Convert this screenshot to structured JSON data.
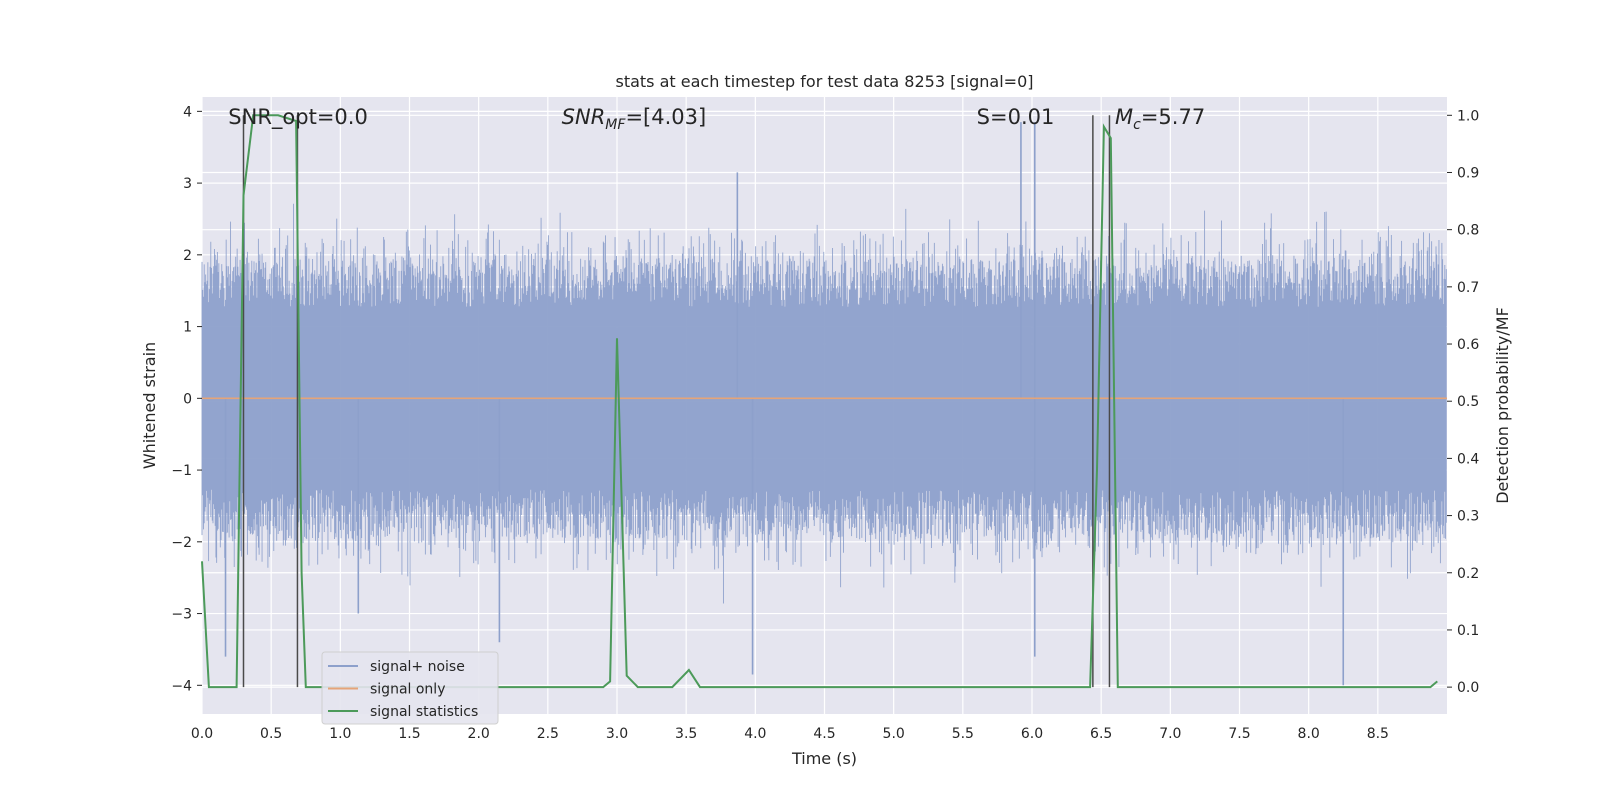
{
  "chart_data": {
    "type": "line",
    "title": "stats at each timestep for test data 8253 [signal=0]",
    "xlabel": "Time (s)",
    "ylabel": "Whitened strain",
    "ylabel_right": "Detection probability/MF",
    "xlim": [
      0,
      9.0
    ],
    "ylim": [
      -4.4,
      4.2
    ],
    "ylim_right": [
      -0.047,
      1.032
    ],
    "xticks": [
      "0.0",
      "0.5",
      "1.0",
      "1.5",
      "2.0",
      "2.5",
      "3.0",
      "3.5",
      "4.0",
      "4.5",
      "5.0",
      "5.5",
      "6.0",
      "6.5",
      "7.0",
      "7.5",
      "8.0",
      "8.5"
    ],
    "xtick_values": [
      0,
      0.5,
      1,
      1.5,
      2,
      2.5,
      3,
      3.5,
      4,
      4.5,
      5,
      5.5,
      6,
      6.5,
      7,
      7.5,
      8,
      8.5
    ],
    "yticks": [
      "−4",
      "−3",
      "−2",
      "−1",
      "0",
      "1",
      "2",
      "3",
      "4"
    ],
    "ytick_values": [
      -4,
      -3,
      -2,
      -1,
      0,
      1,
      2,
      3,
      4
    ],
    "yticks_right": [
      "0.0",
      "0.1",
      "0.2",
      "0.3",
      "0.4",
      "0.5",
      "0.6",
      "0.7",
      "0.8",
      "0.9",
      "1.0"
    ],
    "ytick_values_right": [
      0,
      0.1,
      0.2,
      0.3,
      0.4,
      0.5,
      0.6,
      0.7,
      0.8,
      0.9,
      1.0
    ],
    "grid": true,
    "legend_position": "lower-left",
    "series": [
      {
        "name": "signal+ noise",
        "color": "#8da0cb",
        "axis": "left",
        "style": "dense-noise",
        "envelope_typical": 1.7,
        "envelope_peak": 3.15,
        "notable_points": [
          {
            "x": 5.92,
            "y": 3.85
          },
          {
            "x": 6.02,
            "y": 3.85
          },
          {
            "x": 3.87,
            "y": 3.15
          },
          {
            "x": 6.02,
            "y": -3.6
          },
          {
            "x": 3.98,
            "y": -3.85
          },
          {
            "x": 8.25,
            "y": -4.0
          },
          {
            "x": 0.17,
            "y": -3.6
          },
          {
            "x": 1.13,
            "y": -3.0
          },
          {
            "x": 2.15,
            "y": -3.4
          }
        ]
      },
      {
        "name": "signal only",
        "color": "#e5a478",
        "axis": "left",
        "x": [
          0,
          9.0
        ],
        "y": [
          0,
          0
        ]
      },
      {
        "name": "signal statistics",
        "color": "#4c9a5a",
        "axis": "right",
        "x": [
          0.0,
          0.05,
          0.25,
          0.3,
          0.37,
          0.55,
          0.68,
          0.72,
          0.75,
          2.9,
          2.95,
          3.0,
          3.07,
          3.15,
          3.4,
          3.52,
          3.6,
          6.42,
          6.47,
          6.52,
          6.57,
          6.62,
          8.88,
          8.93
        ],
        "y": [
          0.22,
          0.0,
          0.0,
          0.86,
          1.0,
          1.0,
          0.99,
          0.2,
          0.0,
          0.0,
          0.01,
          0.61,
          0.02,
          0.0,
          0.0,
          0.03,
          0.0,
          0.0,
          0.38,
          0.98,
          0.96,
          0.0,
          0.0,
          0.01
        ]
      }
    ],
    "vlines": [
      0.3,
      0.69,
      6.44,
      6.56
    ],
    "vline_color": "#4a4a4a",
    "annotations": [
      {
        "text": "SNR_opt=0.0",
        "x": 0.19
      },
      {
        "text": "SNR_MF=[4.03]",
        "x": 2.6
      },
      {
        "text": "S=0.01",
        "x": 5.6
      },
      {
        "text": "M_c=5.77",
        "x": 6.6
      }
    ]
  },
  "legend": {
    "items": [
      "signal+ noise",
      "signal only",
      "signal statistics"
    ]
  },
  "colors": {
    "plot_background": "#e5e5ef",
    "grid": "#ffffff"
  }
}
